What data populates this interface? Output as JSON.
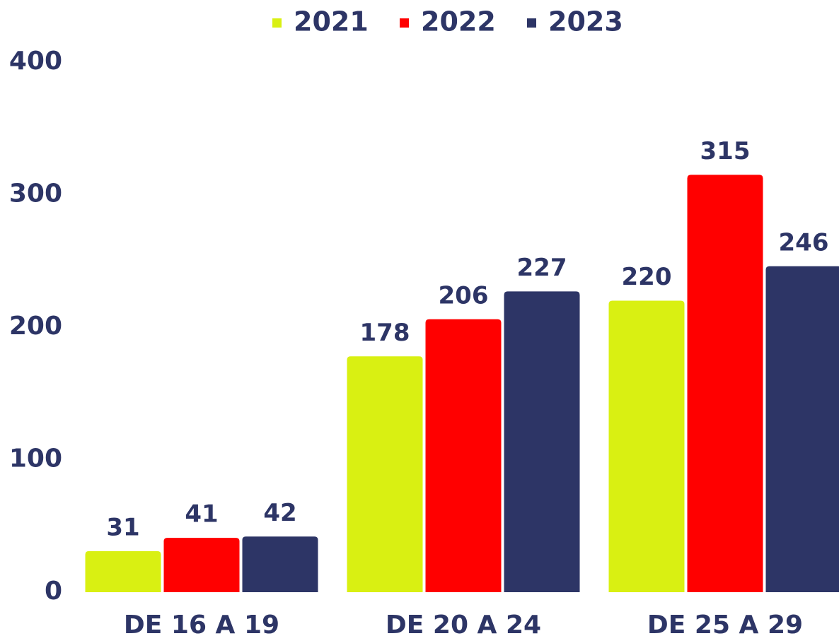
{
  "chart_data": {
    "type": "bar",
    "categories": [
      "DE 16 A 19",
      "DE 20 A 24",
      "DE 25 A 29"
    ],
    "series": [
      {
        "name": "2021",
        "color": "#d9f012",
        "values": [
          31,
          178,
          220
        ]
      },
      {
        "name": "2022",
        "color": "#ff0000",
        "values": [
          41,
          206,
          315
        ]
      },
      {
        "name": "2023",
        "color": "#2d3566",
        "values": [
          42,
          227,
          246
        ]
      }
    ],
    "ylim": [
      0,
      400
    ],
    "yticks": [
      0,
      100,
      200,
      300,
      400
    ],
    "grid": false,
    "legend": "top"
  }
}
